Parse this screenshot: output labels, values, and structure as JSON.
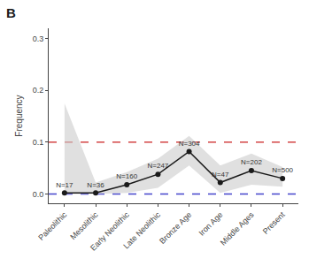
{
  "chart_data": {
    "type": "line",
    "title": "B",
    "ylabel": "Frequency",
    "categories": [
      "Paleolithic",
      "Mesolithic",
      "Early Neolithic",
      "Late Neolithic",
      "Bronze Age",
      "Iron Age",
      "Middle Ages",
      "Present"
    ],
    "values": [
      0.002,
      0.002,
      0.018,
      0.038,
      0.082,
      0.022,
      0.045,
      0.03
    ],
    "lower": [
      0.0,
      0.0,
      0.002,
      0.012,
      0.055,
      0.002,
      0.018,
      0.014
    ],
    "upper": [
      0.175,
      0.022,
      0.042,
      0.068,
      0.112,
      0.055,
      0.078,
      0.052
    ],
    "point_labels": [
      "N=17",
      "N=36",
      "N=160",
      "N=247",
      "N=304",
      "N=47",
      "N=202",
      "N=500"
    ],
    "color": "#1a1a1a",
    "band_color": "#cccccc",
    "marker": "circle",
    "line_style": "solid",
    "reference_lines": [
      {
        "value": 0.1,
        "color": "#cc2222",
        "line_style": "dashed"
      },
      {
        "value": 0.0,
        "color": "#4444cc",
        "line_style": "dashed"
      }
    ],
    "ylim": [
      -0.018,
      0.32
    ],
    "yticks": [
      {
        "value": 0.0,
        "label": "0.0"
      },
      0.1,
      0.2,
      0.3
    ],
    "grid": false
  }
}
